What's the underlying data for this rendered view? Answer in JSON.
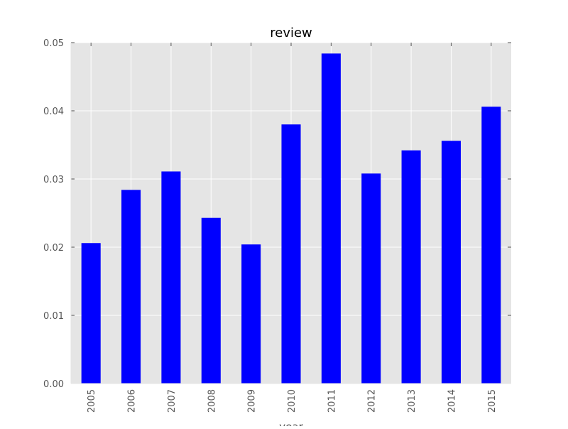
{
  "chart_data": {
    "type": "bar",
    "title": "review",
    "xlabel": "year",
    "ylabel": "",
    "categories": [
      "2005",
      "2006",
      "2007",
      "2008",
      "2009",
      "2010",
      "2011",
      "2012",
      "2013",
      "2014",
      "2015"
    ],
    "values": [
      0.0206,
      0.0284,
      0.0311,
      0.0243,
      0.0204,
      0.038,
      0.0484,
      0.0308,
      0.0342,
      0.0356,
      0.0406
    ],
    "ylim": [
      0,
      0.05
    ],
    "yticks": [
      "0.00",
      "0.01",
      "0.02",
      "0.03",
      "0.04",
      "0.05"
    ],
    "grid": true,
    "legend": "none",
    "colors": {
      "bar": "#0000ff",
      "plot_background": "#e5e5e5",
      "grid": "#ffffff",
      "text": "#555555",
      "title": "#000000"
    }
  }
}
